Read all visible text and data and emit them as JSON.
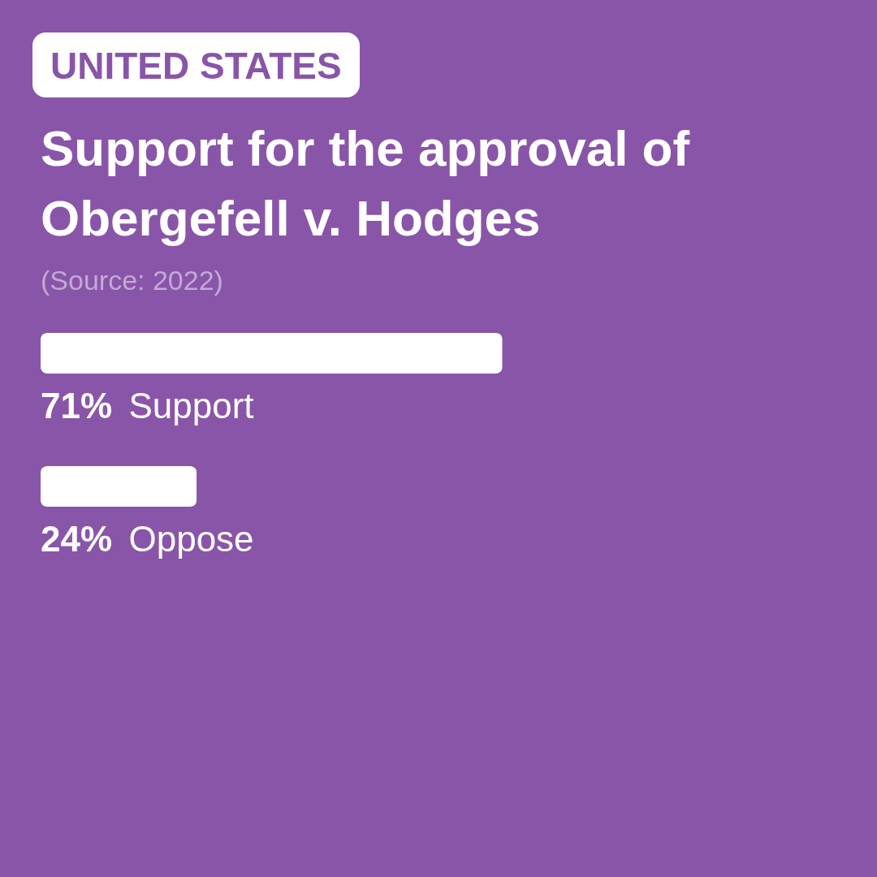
{
  "chart_data": {
    "type": "bar",
    "orientation": "horizontal",
    "subtitle": "UNITED STATES",
    "title": "Support for the approval of Obergefell v. Hodges",
    "annotations": [
      "(Source: 2022)"
    ],
    "categories": [
      "Support",
      "Oppose"
    ],
    "values": [
      71,
      24
    ],
    "value_labels": [
      "71%",
      "24%"
    ],
    "color": "#ffffff"
  }
}
